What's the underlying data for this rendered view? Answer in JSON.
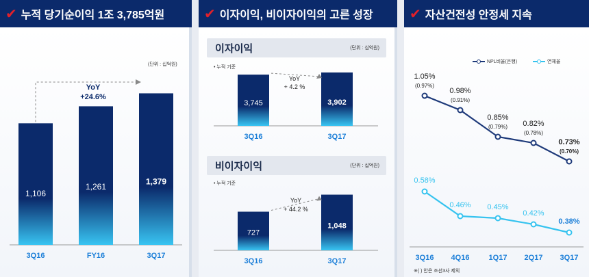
{
  "colors": {
    "header_bg": "#0b2a6b",
    "check": "#e2202a",
    "bar_dark": "#0b2a6b",
    "bar_light": "#38c4f2",
    "xlabel": "#1c7fd8",
    "npl": "#1e3a7a",
    "delinquency": "#36c3ef"
  },
  "panel1": {
    "title": "누적 당기순이익 1조 3,785억원",
    "unit": "(단위 : 십억원)",
    "yoy_label": "YoY",
    "yoy_value": "+24.6%"
  },
  "panel2": {
    "title": "이자이익, 비이자이익의 고른 성장",
    "interest": {
      "title": "이자이익",
      "unit": "(단위 : 십억원)",
      "note": "• 누적 기준",
      "yoy_label": "YoY",
      "yoy_value": "+ 4.2 %"
    },
    "noninterest": {
      "title": "비이자이익",
      "unit": "(단위 : 십억원)",
      "note": "• 누적 기준",
      "yoy_label": "YoY",
      "yoy_value": "+ 44.2 %"
    }
  },
  "panel3": {
    "title": "자산건전성 안정세 지속",
    "legend_npl": "NPL비율(은행)",
    "legend_del": "연체율",
    "footnote": "※( ) 안은 조선3사 제외"
  },
  "chart_data": [
    {
      "type": "bar",
      "title": "누적 당기순이익 1조 3,785억원",
      "categories": [
        "3Q16",
        "FY16",
        "3Q17"
      ],
      "values": [
        1106,
        1261,
        1379
      ],
      "value_labels": [
        "1,106",
        "1,261",
        "1,379"
      ],
      "ylim": [
        0,
        1500
      ]
    },
    {
      "type": "bar",
      "title": "이자이익",
      "categories": [
        "3Q16",
        "3Q17"
      ],
      "values": [
        3745,
        3902
      ],
      "value_labels": [
        "3,745",
        "3,902"
      ],
      "ylim": [
        0,
        4500
      ]
    },
    {
      "type": "bar",
      "title": "비이자이익",
      "categories": [
        "3Q16",
        "3Q17"
      ],
      "values": [
        727,
        1048
      ],
      "value_labels": [
        "727",
        "1,048"
      ],
      "ylim": [
        0,
        1300
      ]
    },
    {
      "type": "line",
      "title": "자산건전성 안정세 지속",
      "categories": [
        "3Q16",
        "4Q16",
        "1Q17",
        "2Q17",
        "3Q17"
      ],
      "series": [
        {
          "name": "NPL비율(은행)",
          "values": [
            1.05,
            0.98,
            0.85,
            0.82,
            0.73
          ],
          "value_labels": [
            "1.05%",
            "0.98%",
            "0.85%",
            "0.82%",
            "0.73%"
          ],
          "sub_labels": [
            "(0.97%)",
            "(0.91%)",
            "(0.79%)",
            "(0.78%)",
            "(0.70%)"
          ]
        },
        {
          "name": "연체율",
          "values": [
            0.58,
            0.46,
            0.45,
            0.42,
            0.38
          ],
          "value_labels": [
            "0.58%",
            "0.46%",
            "0.45%",
            "0.42%",
            "0.38%"
          ]
        }
      ]
    }
  ]
}
